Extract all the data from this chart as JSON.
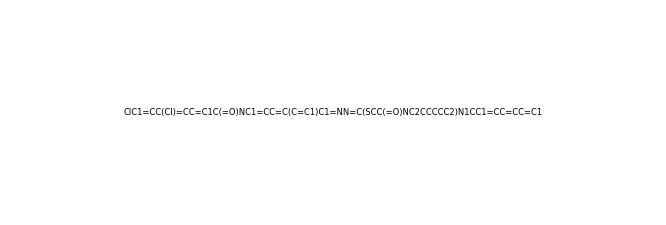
{
  "smiles": "ClC1=CC(Cl)=CC=C1C(=O)NC1=CC=C(C=C1)C1=NN=C(SCC(=O)NC2CCCCC2)N1CC1=CC=CC=C1",
  "title": "",
  "background_color": "#ffffff",
  "line_color": "#000000",
  "figsize": [
    6.66,
    2.26
  ],
  "dpi": 100
}
